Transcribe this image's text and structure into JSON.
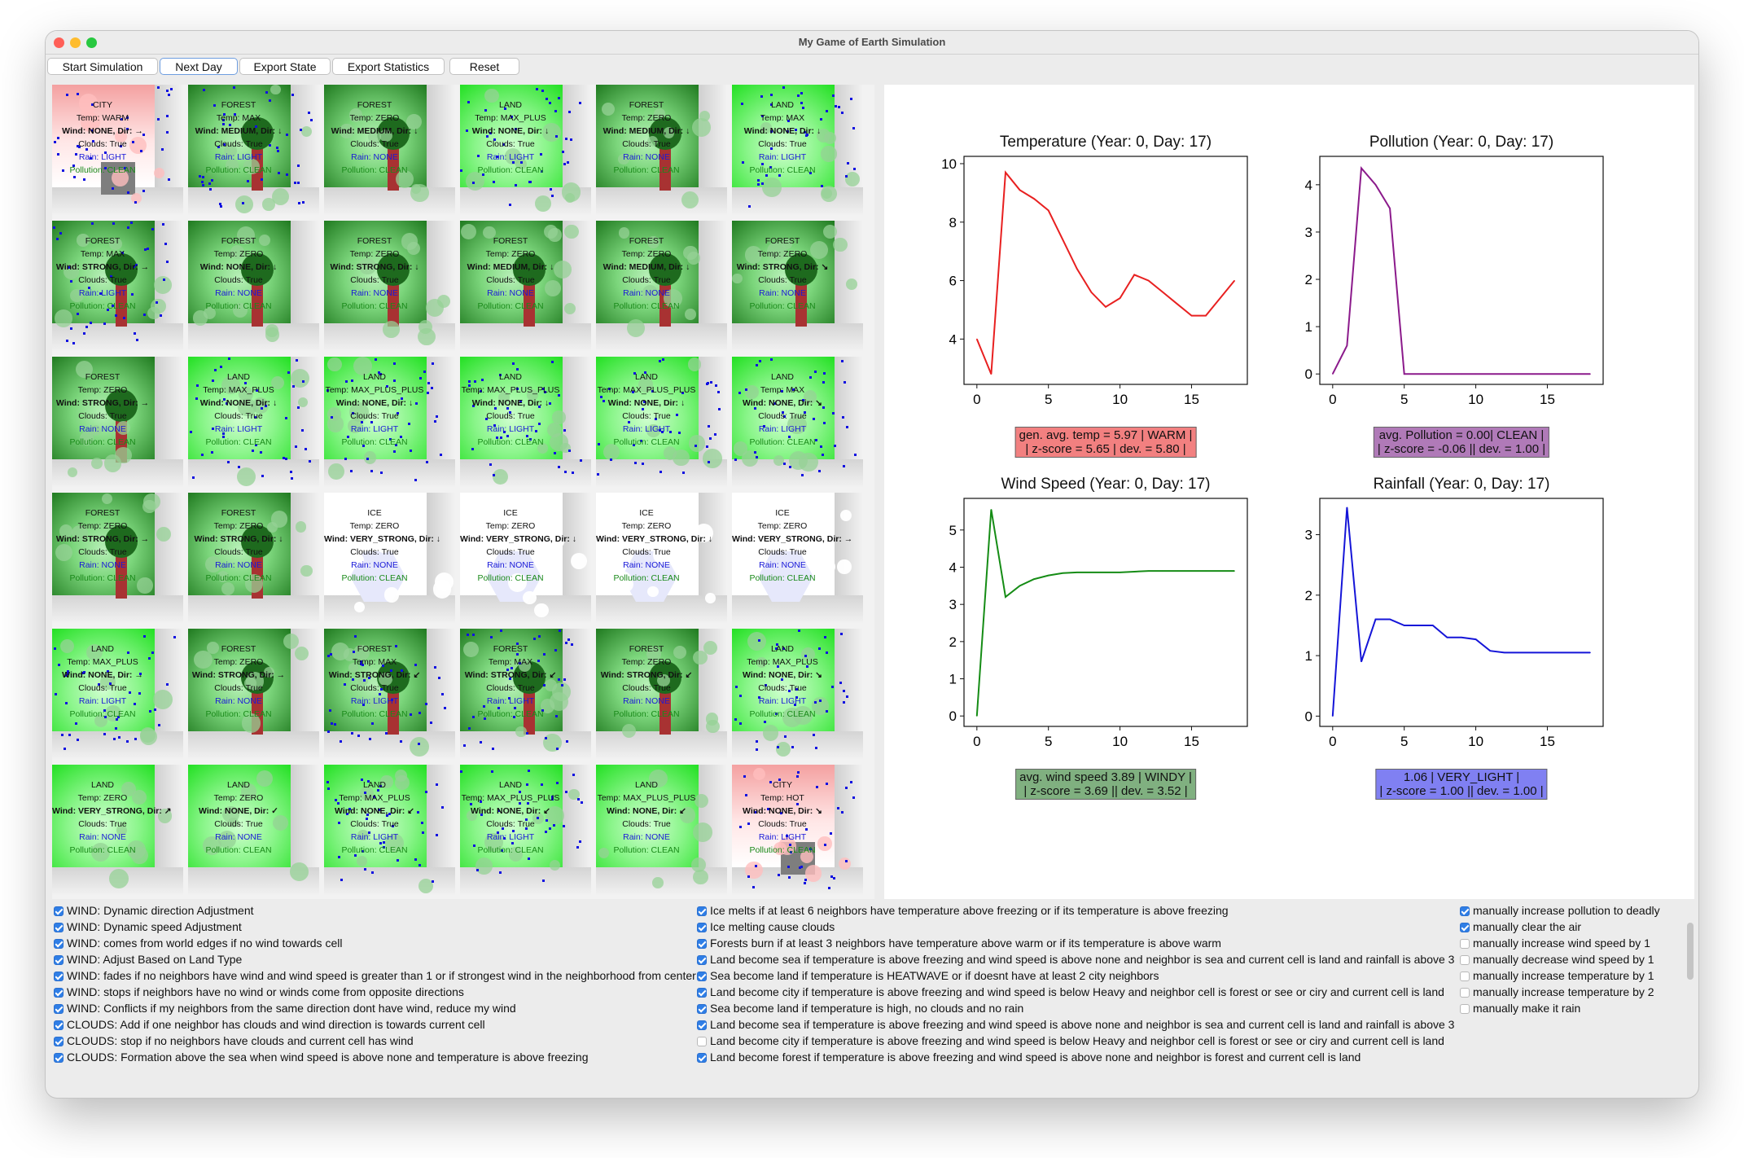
{
  "window": {
    "title": "My Game of Earth Simulation"
  },
  "colors": {
    "close": "#ff5f57",
    "minimize": "#febc2e",
    "zoom": "#28c840"
  },
  "toolbar": {
    "buttons": [
      "Start Simulation",
      "Next Day",
      "Export State",
      "Export Statistics",
      "Reset"
    ],
    "active": "Next Day"
  },
  "grid": {
    "rows": [
      [
        {
          "type": "CITY",
          "temp": "Temp: WARM",
          "wind": "Wind: NONE, Dir: →",
          "clouds": "Clouds: True",
          "rain": "Rain: LIGHT",
          "pollution": "Pollution: CLEAN"
        },
        {
          "type": "FOREST",
          "temp": "Temp: MAX",
          "wind": "Wind: MEDIUM, Dir: ↓",
          "clouds": "Clouds: True",
          "rain": "Rain: LIGHT",
          "pollution": "Pollution: CLEAN"
        },
        {
          "type": "FOREST",
          "temp": "Temp: ZERO",
          "wind": "Wind: MEDIUM, Dir: ↓",
          "clouds": "Clouds: True",
          "rain": "Rain: NONE",
          "pollution": "Pollution: CLEAN"
        },
        {
          "type": "LAND",
          "temp": "Temp: MAX_PLUS",
          "wind": "Wind: NONE, Dir: ↓",
          "clouds": "Clouds: True",
          "rain": "Rain: LIGHT",
          "pollution": "Pollution: CLEAN"
        },
        {
          "type": "FOREST",
          "temp": "Temp: ZERO",
          "wind": "Wind: MEDIUM, Dir: ↓",
          "clouds": "Clouds: True",
          "rain": "Rain: NONE",
          "pollution": "Pollution: CLEAN"
        },
        {
          "type": "LAND",
          "temp": "Temp: MAX",
          "wind": "Wind: NONE, Dir: ↓",
          "clouds": "Clouds: True",
          "rain": "Rain: LIGHT",
          "pollution": "Pollution: CLEAN"
        }
      ],
      [
        {
          "type": "FOREST",
          "temp": "Temp: MAX",
          "wind": "Wind: STRONG, Dir: →",
          "clouds": "Clouds: True",
          "rain": "Rain: LIGHT",
          "pollution": "Pollution: CLEAN"
        },
        {
          "type": "FOREST",
          "temp": "Temp: ZERO",
          "wind": "Wind: NONE, Dir: ↓",
          "clouds": "Clouds: True",
          "rain": "Rain: NONE",
          "pollution": "Pollution: CLEAN"
        },
        {
          "type": "FOREST",
          "temp": "Temp: ZERO",
          "wind": "Wind: STRONG, Dir: ↓",
          "clouds": "Clouds: True",
          "rain": "Rain: NONE",
          "pollution": "Pollution: CLEAN"
        },
        {
          "type": "FOREST",
          "temp": "Temp: ZERO",
          "wind": "Wind: MEDIUM, Dir: ↓",
          "clouds": "Clouds: True",
          "rain": "Rain: NONE",
          "pollution": "Pollution: CLEAN"
        },
        {
          "type": "FOREST",
          "temp": "Temp: ZERO",
          "wind": "Wind: MEDIUM, Dir: ↓",
          "clouds": "Clouds: True",
          "rain": "Rain: NONE",
          "pollution": "Pollution: CLEAN"
        },
        {
          "type": "FOREST",
          "temp": "Temp: ZERO",
          "wind": "Wind: STRONG, Dir: ↘",
          "clouds": "Clouds: True",
          "rain": "Rain: NONE",
          "pollution": "Pollution: CLEAN"
        }
      ],
      [
        {
          "type": "FOREST",
          "temp": "Temp: ZERO",
          "wind": "Wind: STRONG, Dir: →",
          "clouds": "Clouds: True",
          "rain": "Rain: NONE",
          "pollution": "Pollution: CLEAN"
        },
        {
          "type": "LAND",
          "temp": "Temp: MAX_PLUS",
          "wind": "Wind: NONE, Dir: ↓",
          "clouds": "Clouds: True",
          "rain": "Rain: LIGHT",
          "pollution": "Pollution: CLEAN"
        },
        {
          "type": "LAND",
          "temp": "Temp: MAX_PLUS_PLUS",
          "wind": "Wind: NONE, Dir: ↓",
          "clouds": "Clouds: True",
          "rain": "Rain: LIGHT",
          "pollution": "Pollution: CLEAN"
        },
        {
          "type": "LAND",
          "temp": "Temp: MAX_PLUS_PLUS",
          "wind": "Wind: NONE, Dir: ↓",
          "clouds": "Clouds: True",
          "rain": "Rain: LIGHT",
          "pollution": "Pollution: CLEAN"
        },
        {
          "type": "LAND",
          "temp": "Temp: MAX_PLUS_PLUS",
          "wind": "Wind: NONE, Dir: ↓",
          "clouds": "Clouds: True",
          "rain": "Rain: LIGHT",
          "pollution": "Pollution: CLEAN"
        },
        {
          "type": "LAND",
          "temp": "Temp: MAX",
          "wind": "Wind: NONE, Dir: ↘",
          "clouds": "Clouds: True",
          "rain": "Rain: LIGHT",
          "pollution": "Pollution: CLEAN"
        }
      ],
      [
        {
          "type": "FOREST",
          "temp": "Temp: ZERO",
          "wind": "Wind: STRONG, Dir: →",
          "clouds": "Clouds: True",
          "rain": "Rain: NONE",
          "pollution": "Pollution: CLEAN"
        },
        {
          "type": "FOREST",
          "temp": "Temp: ZERO",
          "wind": "Wind: STRONG, Dir: ↓",
          "clouds": "Clouds: True",
          "rain": "Rain: NONE",
          "pollution": "Pollution: CLEAN"
        },
        {
          "type": "ICE",
          "temp": "Temp: ZERO",
          "wind": "Wind: VERY_STRONG, Dir: ↓",
          "clouds": "Clouds: True",
          "rain": "Rain: NONE",
          "pollution": "Pollution: CLEAN"
        },
        {
          "type": "ICE",
          "temp": "Temp: ZERO",
          "wind": "Wind: VERY_STRONG, Dir: ↓",
          "clouds": "Clouds: True",
          "rain": "Rain: NONE",
          "pollution": "Pollution: CLEAN"
        },
        {
          "type": "ICE",
          "temp": "Temp: ZERO",
          "wind": "Wind: VERY_STRONG, Dir: ↓",
          "clouds": "Clouds: True",
          "rain": "Rain: NONE",
          "pollution": "Pollution: CLEAN"
        },
        {
          "type": "ICE",
          "temp": "Temp: ZERO",
          "wind": "Wind: VERY_STRONG, Dir: →",
          "clouds": "Clouds: True",
          "rain": "Rain: NONE",
          "pollution": "Pollution: CLEAN"
        }
      ],
      [
        {
          "type": "LAND",
          "temp": "Temp: MAX_PLUS",
          "wind": "Wind: NONE, Dir: →",
          "clouds": "Clouds: True",
          "rain": "Rain: LIGHT",
          "pollution": "Pollution: CLEAN"
        },
        {
          "type": "FOREST",
          "temp": "Temp: ZERO",
          "wind": "Wind: STRONG, Dir: →",
          "clouds": "Clouds: True",
          "rain": "Rain: NONE",
          "pollution": "Pollution: CLEAN"
        },
        {
          "type": "FOREST",
          "temp": "Temp: MAX",
          "wind": "Wind: STRONG, Dir: ↙",
          "clouds": "Clouds: True",
          "rain": "Rain: LIGHT",
          "pollution": "Pollution: CLEAN"
        },
        {
          "type": "FOREST",
          "temp": "Temp: MAX",
          "wind": "Wind: STRONG, Dir: ↙",
          "clouds": "Clouds: True",
          "rain": "Rain: LIGHT",
          "pollution": "Pollution: CLEAN"
        },
        {
          "type": "FOREST",
          "temp": "Temp: ZERO",
          "wind": "Wind: STRONG, Dir: ↙",
          "clouds": "Clouds: True",
          "rain": "Rain: NONE",
          "pollution": "Pollution: CLEAN"
        },
        {
          "type": "LAND",
          "temp": "Temp: MAX_PLUS",
          "wind": "Wind: NONE, Dir: ↘",
          "clouds": "Clouds: True",
          "rain": "Rain: LIGHT",
          "pollution": "Pollution: CLEAN"
        }
      ],
      [
        {
          "type": "LAND",
          "temp": "Temp: ZERO",
          "wind": "Wind: VERY_STRONG, Dir: ↗",
          "clouds": "Clouds: True",
          "rain": "Rain: NONE",
          "pollution": "Pollution: CLEAN"
        },
        {
          "type": "LAND",
          "temp": "Temp: ZERO",
          "wind": "Wind: NONE, Dir: ✓",
          "clouds": "Clouds: True",
          "rain": "Rain: NONE",
          "pollution": "Pollution: CLEAN"
        },
        {
          "type": "LAND",
          "temp": "Temp: MAX_PLUS",
          "wind": "Wind: NONE, Dir: ↙",
          "clouds": "Clouds: True",
          "rain": "Rain: LIGHT",
          "pollution": "Pollution: CLEAN"
        },
        {
          "type": "LAND",
          "temp": "Temp: MAX_PLUS_PLUS",
          "wind": "Wind: NONE, Dir: ↙",
          "clouds": "Clouds: True",
          "rain": "Rain: LIGHT",
          "pollution": "Pollution: CLEAN"
        },
        {
          "type": "LAND",
          "temp": "Temp: MAX_PLUS_PLUS",
          "wind": "Wind: NONE, Dir: ↙",
          "clouds": "Clouds: True",
          "rain": "Rain: NONE",
          "pollution": "Pollution: CLEAN"
        },
        {
          "type": "CITY",
          "temp": "Temp: HOT",
          "wind": "Wind: NONE, Dir: ↘",
          "clouds": "Clouds: True",
          "rain": "Rain: LIGHT",
          "pollution": "Pollution: CLEAN"
        }
      ]
    ]
  },
  "chart_data": [
    {
      "type": "line",
      "title": "Temperature (Year: 0, Day: 17)",
      "color": "#e82020",
      "x": [
        0,
        1,
        2,
        3,
        4,
        5,
        6,
        7,
        8,
        9,
        10,
        11,
        12,
        13,
        14,
        15,
        16,
        17,
        18
      ],
      "y": [
        4.0,
        2.8,
        9.7,
        9.1,
        8.8,
        8.4,
        7.4,
        6.4,
        5.6,
        5.1,
        5.4,
        6.2,
        6.0,
        5.6,
        5.2,
        4.8,
        4.8,
        5.4,
        6.0
      ],
      "xlim": [
        -0.9,
        18.9
      ],
      "ylim": [
        2.45,
        10.25
      ],
      "xticks": [
        0,
        5,
        10,
        15
      ],
      "yticks": [
        4,
        6,
        8,
        10
      ],
      "stat": {
        "line1": "gen. avg. temp = 5.97 | WARM |",
        "line2": "| z-score = 5.65 | dev. = 5.80 |",
        "bg": "#f28080"
      }
    },
    {
      "type": "line",
      "title": "Pollution (Year: 0, Day: 17)",
      "color": "#8b1a8b",
      "x": [
        0,
        1,
        2,
        3,
        4,
        5,
        6,
        7,
        8,
        9,
        10,
        11,
        12,
        13,
        14,
        15,
        16,
        17,
        18
      ],
      "y": [
        0,
        0.6,
        4.35,
        4.0,
        3.5,
        0,
        0,
        0,
        0,
        0,
        0,
        0,
        0,
        0,
        0,
        0,
        0,
        0,
        0
      ],
      "xlim": [
        -0.9,
        18.9
      ],
      "ylim": [
        -0.22,
        4.6
      ],
      "xticks": [
        0,
        5,
        10,
        15
      ],
      "yticks": [
        0,
        1,
        2,
        3,
        4
      ],
      "stat": {
        "line1": "avg. Pollution = 0.00| CLEAN |",
        "line2": "| z-score = -0.06 || dev. = 1.00 |",
        "bg": "#b07ab8"
      }
    },
    {
      "type": "line",
      "title": "Wind Speed (Year: 0, Day: 17)",
      "color": "#158c15",
      "x": [
        0,
        1,
        2,
        3,
        4,
        5,
        6,
        7,
        8,
        9,
        10,
        11,
        12,
        13,
        14,
        15,
        16,
        17,
        18
      ],
      "y": [
        0,
        5.55,
        3.2,
        3.5,
        3.68,
        3.78,
        3.84,
        3.86,
        3.86,
        3.86,
        3.86,
        3.88,
        3.9,
        3.9,
        3.9,
        3.9,
        3.9,
        3.9,
        3.9
      ],
      "xlim": [
        -0.9,
        18.9
      ],
      "ylim": [
        -0.28,
        5.85
      ],
      "xticks": [
        0,
        5,
        10,
        15
      ],
      "yticks": [
        0,
        1,
        2,
        3,
        4,
        5
      ],
      "stat": {
        "line1": "avg. wind speed 3.89 | WINDY |",
        "line2": "| z-score = 3.69 || dev. = 3.52 |",
        "bg": "#80b080"
      }
    },
    {
      "type": "line",
      "title": "Rainfall (Year: 0, Day: 17)",
      "color": "#1515d8",
      "x": [
        0,
        1,
        2,
        3,
        4,
        5,
        6,
        7,
        8,
        9,
        10,
        11,
        12,
        13,
        14,
        15,
        16,
        17,
        18
      ],
      "y": [
        0,
        3.45,
        0.9,
        1.6,
        1.6,
        1.5,
        1.5,
        1.5,
        1.3,
        1.3,
        1.27,
        1.08,
        1.05,
        1.05,
        1.05,
        1.05,
        1.05,
        1.05,
        1.05
      ],
      "xlim": [
        -0.9,
        18.9
      ],
      "ylim": [
        -0.17,
        3.6
      ],
      "xticks": [
        0,
        5,
        10,
        15
      ],
      "yticks": [
        0,
        1,
        2,
        3
      ],
      "stat": {
        "line1": "1.06 | VERY_LIGHT |",
        "line2": "| z-score = 1.00 || dev. = 1.00 |",
        "bg": "#8080f2"
      }
    }
  ],
  "options": {
    "col1": [
      {
        "label": "WIND: Dynamic direction Adjustment",
        "checked": true
      },
      {
        "label": "WIND: Dynamic speed Adjustment",
        "checked": true
      },
      {
        "label": "WIND: comes from world edges if no wind towards cell",
        "checked": true
      },
      {
        "label": "WIND: Adjust Based on Land Type",
        "checked": true
      },
      {
        "label": "WIND: fades if no neighbors have wind and wind speed is greater than 1 or if strongest wind in the neighborhood from center",
        "checked": true
      },
      {
        "label": "WIND: stops if neighbors have no wind or winds come from opposite directions",
        "checked": true
      },
      {
        "label": "WIND: Conflicts if my neighbors from the same direction dont have wind, reduce my wind",
        "checked": true
      },
      {
        "label": "CLOUDS: Add if one neighbor has clouds and wind direction is towards current cell",
        "checked": true
      },
      {
        "label": "CLOUDS: stop if no neighbors have clouds and current cell has wind",
        "checked": true
      },
      {
        "label": "CLOUDS: Formation above the sea when wind speed is above none and temperature is above freezing",
        "checked": true
      }
    ],
    "col2": [
      {
        "label": "Ice melts if at least 6 neighbors have temperature above freezing or if its temperature is above freezing",
        "checked": true
      },
      {
        "label": "Ice melting cause clouds",
        "checked": true
      },
      {
        "label": "Forests burn if at least 3 neighbors have temperature above warm or if its temperature is above warm",
        "checked": true
      },
      {
        "label": "Land become sea if temperature is above freezing and wind speed is above none and neighbor is sea and current cell is land and rainfall is above 3",
        "checked": true
      },
      {
        "label": "Sea become land if temperature is HEATWAVE or if doesnt have at least 2 city neighbors",
        "checked": true
      },
      {
        "label": "Land become city if temperature is above freezing and wind speed is below Heavy and neighbor cell is forest or see or ciry and current cell is land",
        "checked": true
      },
      {
        "label": "Sea become land if temperature is high, no clouds and no rain",
        "checked": true
      },
      {
        "label": "Land become sea if temperature is above freezing and wind speed is above none and neighbor is sea and current cell is land and rainfall is above 3",
        "checked": true
      },
      {
        "label": "Land become city if temperature is above freezing and wind speed is below Heavy and neighbor cell is forest or see or ciry and current cell is land",
        "checked": false
      },
      {
        "label": "Land become forest if temperature is above freezing and wind speed is above none and neighbor is forest and current cell is land",
        "checked": true
      }
    ],
    "col3": [
      {
        "label": "manually increase pollution to deadly",
        "checked": true
      },
      {
        "label": "manually clear the air",
        "checked": true
      },
      {
        "label": "manually increase wind speed by 1",
        "checked": false
      },
      {
        "label": "manually decrease wind speed by 1",
        "checked": false
      },
      {
        "label": "manually increase temperature by 1",
        "checked": false
      },
      {
        "label": "manually increase temperature by 2",
        "checked": false
      },
      {
        "label": "manually make it rain",
        "checked": false
      }
    ]
  }
}
